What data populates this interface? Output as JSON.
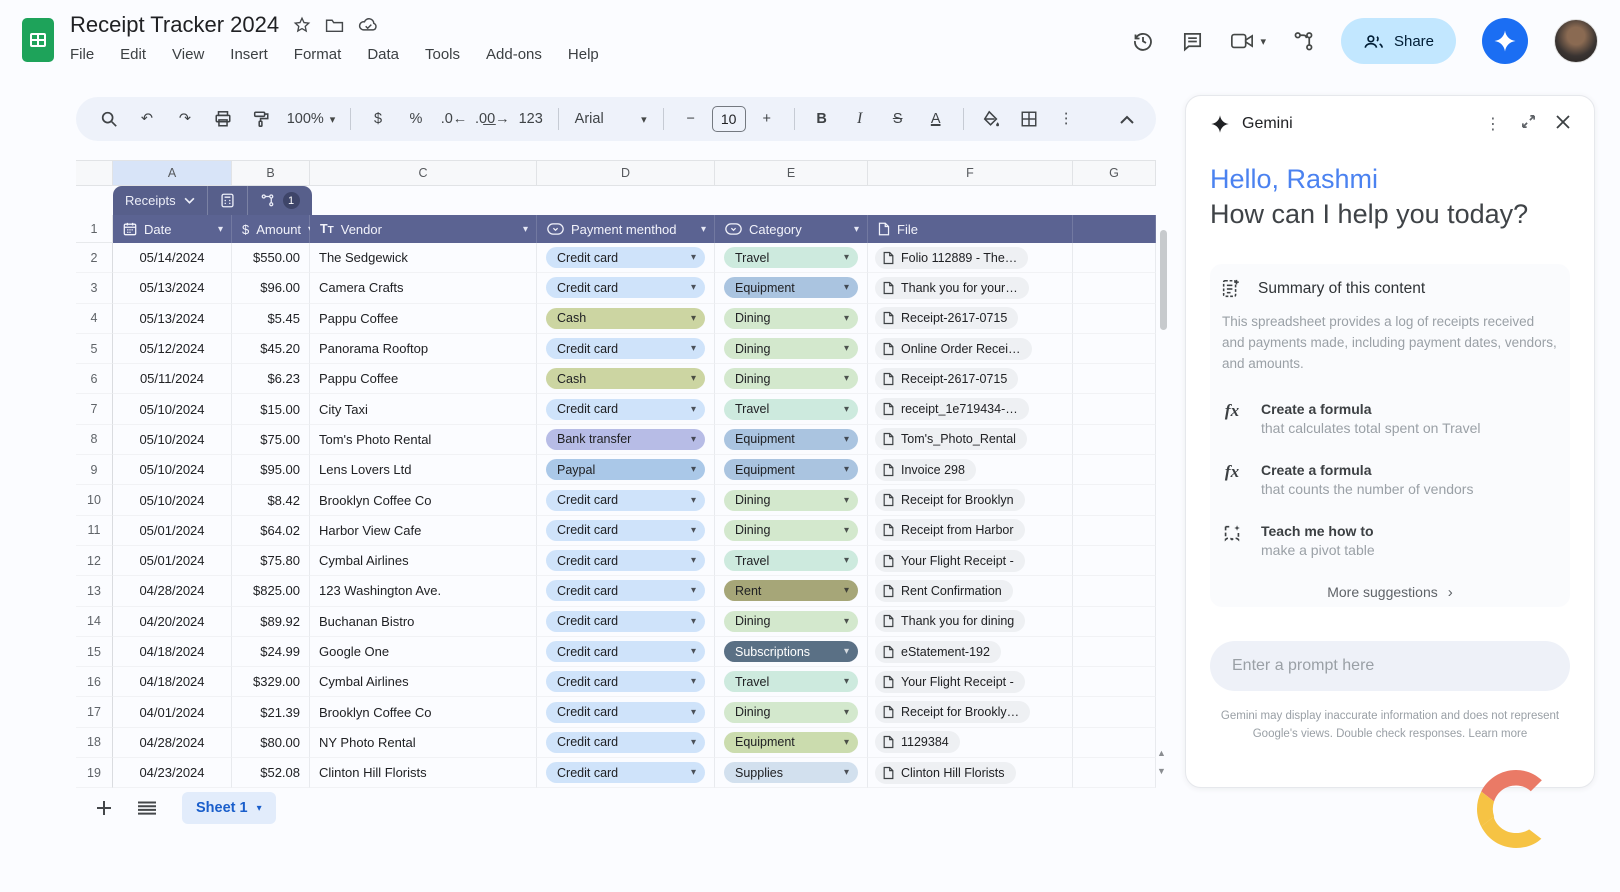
{
  "app": {
    "title": "Receipt Tracker 2024",
    "menus": [
      "File",
      "Edit",
      "View",
      "Insert",
      "Format",
      "Data",
      "Tools",
      "Add-ons",
      "Help"
    ],
    "share_label": "Share",
    "toolbar": {
      "zoom": "100%",
      "number_format": "123",
      "font": "Arial",
      "font_size": "10",
      "currency": "$",
      "percent": "%",
      "dec_decrease": ".0",
      "dec_increase": ".00",
      "bold": "B",
      "italic": "I",
      "strikethrough": "S",
      "text_color": "A"
    }
  },
  "palette": {
    "header_row": "#5b6392",
    "tab_chip": "#575f8b",
    "accent_blue": "#1a73e8",
    "share_bg": "#c2e7ff",
    "selected_col": "#d8e4f8",
    "sheets_green": "#1ea35a"
  },
  "grid": {
    "columns": [
      "A",
      "B",
      "C",
      "D",
      "E",
      "F",
      "G"
    ],
    "selected_column": "A"
  },
  "table": {
    "tab_label": "Receipts",
    "tab_badge": "1",
    "headers": [
      {
        "label": "Date",
        "icon": "calendar",
        "caret": true
      },
      {
        "label": "Amount",
        "icon": "dollar",
        "caret": true
      },
      {
        "label": "Vendor",
        "icon": "text",
        "caret": true
      },
      {
        "label": "Payment menthod",
        "icon": "dropdown",
        "caret": true
      },
      {
        "label": "Category",
        "icon": "dropdown",
        "caret": true
      },
      {
        "label": "File",
        "icon": "file",
        "caret": false
      }
    ],
    "rows": [
      {
        "n": 2,
        "date": "05/14/2024",
        "amount": "$550.00",
        "vendor": "The Sedgewick",
        "payment": "Credit card",
        "payment_color": "#cfe3fa",
        "category": "Travel",
        "category_color": "#cdeade",
        "file": "Folio 112889 - The…"
      },
      {
        "n": 3,
        "date": "05/13/2024",
        "amount": "$96.00",
        "vendor": "Camera Crafts",
        "payment": "Credit card",
        "payment_color": "#cfe3fa",
        "category": "Equipment",
        "category_color": "#aac4e0",
        "file": "Thank you for your…"
      },
      {
        "n": 4,
        "date": "05/13/2024",
        "amount": "$5.45",
        "vendor": "Pappu Coffee",
        "payment": "Cash",
        "payment_color": "#ccd5a2",
        "category": "Dining",
        "category_color": "#d3e8cd",
        "file": "Receipt-2617-0715"
      },
      {
        "n": 5,
        "date": "05/12/2024",
        "amount": "$45.20",
        "vendor": "Panorama Rooftop",
        "payment": "Credit card",
        "payment_color": "#cfe3fa",
        "category": "Dining",
        "category_color": "#d3e8cd",
        "file": "Online Order Recei…"
      },
      {
        "n": 6,
        "date": "05/11/2024",
        "amount": "$6.23",
        "vendor": "Pappu Coffee",
        "payment": "Cash",
        "payment_color": "#ccd5a2",
        "category": "Dining",
        "category_color": "#d3e8cd",
        "file": "Receipt-2617-0715"
      },
      {
        "n": 7,
        "date": "05/10/2024",
        "amount": "$15.00",
        "vendor": "City Taxi",
        "payment": "Credit card",
        "payment_color": "#cfe3fa",
        "category": "Travel",
        "category_color": "#cdeade",
        "file": "receipt_1e719434-…"
      },
      {
        "n": 8,
        "date": "05/10/2024",
        "amount": "$75.00",
        "vendor": "Tom's Photo Rental",
        "payment": "Bank transfer",
        "payment_color": "#b7bce6",
        "category": "Equipment",
        "category_color": "#aac4e0",
        "file": "Tom's_Photo_Rental"
      },
      {
        "n": 9,
        "date": "05/10/2024",
        "amount": "$95.00",
        "vendor": "Lens Lovers Ltd",
        "payment": "Paypal",
        "payment_color": "#aac8e8",
        "category": "Equipment",
        "category_color": "#aac4e0",
        "file": "Invoice 298"
      },
      {
        "n": 10,
        "date": "05/10/2024",
        "amount": "$8.42",
        "vendor": "Brooklyn Coffee Co",
        "payment": "Credit card",
        "payment_color": "#cfe3fa",
        "category": "Dining",
        "category_color": "#d3e8cd",
        "file": "Receipt for Brooklyn"
      },
      {
        "n": 11,
        "date": "05/01/2024",
        "amount": "$64.02",
        "vendor": "Harbor View Cafe",
        "payment": "Credit card",
        "payment_color": "#cfe3fa",
        "category": "Dining",
        "category_color": "#d3e8cd",
        "file": "Receipt from Harbor"
      },
      {
        "n": 12,
        "date": "05/01/2024",
        "amount": "$75.80",
        "vendor": "Cymbal Airlines",
        "payment": "Credit card",
        "payment_color": "#cfe3fa",
        "category": "Travel",
        "category_color": "#cdeade",
        "file": "Your Flight Receipt -"
      },
      {
        "n": 13,
        "date": "04/28/2024",
        "amount": "$825.00",
        "vendor": "123 Washington Ave.",
        "payment": "Credit card",
        "payment_color": "#cfe3fa",
        "category": "Rent",
        "category_color": "#a6a678",
        "file": "Rent Confirmation"
      },
      {
        "n": 14,
        "date": "04/20/2024",
        "amount": "$89.92",
        "vendor": "Buchanan Bistro",
        "payment": "Credit card",
        "payment_color": "#cfe3fa",
        "category": "Dining",
        "category_color": "#d3e8cd",
        "file": "Thank you for dining"
      },
      {
        "n": 15,
        "date": "04/18/2024",
        "amount": "$24.99",
        "vendor": "Google One",
        "payment": "Credit card",
        "payment_color": "#cfe3fa",
        "category": "Subscriptions",
        "category_color": "#5a7085",
        "category_text_color": "#ffffff",
        "file": "eStatement-192"
      },
      {
        "n": 16,
        "date": "04/18/2024",
        "amount": "$329.00",
        "vendor": "Cymbal Airlines",
        "payment": "Credit card",
        "payment_color": "#cfe3fa",
        "category": "Travel",
        "category_color": "#cdeade",
        "file": "Your Flight Receipt -"
      },
      {
        "n": 17,
        "date": "04/01/2024",
        "amount": "$21.39",
        "vendor": "Brooklyn Coffee Co",
        "payment": "Credit card",
        "payment_color": "#cfe3fa",
        "category": "Dining",
        "category_color": "#d3e8cd",
        "file": "Receipt for Brookly…"
      },
      {
        "n": 18,
        "date": "04/28/2024",
        "amount": "$80.00",
        "vendor": "NY Photo Rental",
        "payment": "Credit card",
        "payment_color": "#cfe3fa",
        "category": "Equipment",
        "category_color": "#cbdcae",
        "file": "1129384"
      },
      {
        "n": 19,
        "date": "04/23/2024",
        "amount": "$52.08",
        "vendor": "Clinton Hill Florists",
        "payment": "Credit card",
        "payment_color": "#cfe3fa",
        "category": "Supplies",
        "category_color": "#d2e0ee",
        "file": "Clinton Hill Florists"
      }
    ]
  },
  "bottom": {
    "sheet_tab": "Sheet 1"
  },
  "gemini": {
    "title": "Gemini",
    "greeting_name": "Hello, Rashmi",
    "greeting_question": "How can I help you today?",
    "summary_title": "Summary of this content",
    "summary_body": "This spreadsheet provides a log of receipts received and payments made, including payment dates, vendors, and amounts.",
    "suggestions": [
      {
        "icon": "fx",
        "title": "Create a formula",
        "subtitle": "that calculates total spent on Travel"
      },
      {
        "icon": "fx",
        "title": "Create a formula",
        "subtitle": "that counts the number of vendors"
      },
      {
        "icon": "teach",
        "title": "Teach me how to",
        "subtitle": "make a pivot table"
      }
    ],
    "more_label": "More suggestions",
    "prompt_placeholder": "Enter a prompt here",
    "disclaimer": "Gemini may display inaccurate information and does not represent Google's views. Double check responses. Learn more"
  }
}
